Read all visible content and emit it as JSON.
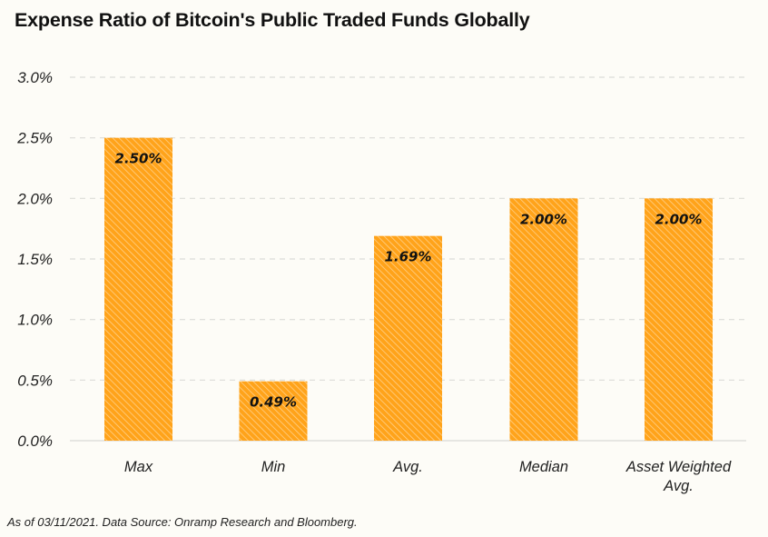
{
  "chart_data": {
    "type": "bar",
    "title": "Expense Ratio of Bitcoin's Public Traded Funds Globally",
    "xlabel": "",
    "ylabel": "",
    "categories": [
      "Max",
      "Min",
      "Avg.",
      "Median",
      "Asset Weighted Avg."
    ],
    "category_lines": [
      [
        "Max"
      ],
      [
        "Min"
      ],
      [
        "Avg."
      ],
      [
        "Median"
      ],
      [
        "Asset Weighted",
        "Avg."
      ]
    ],
    "values": [
      2.5,
      0.49,
      1.69,
      2.0,
      2.0
    ],
    "data_labels": [
      "2.50%",
      "0.49%",
      "1.69%",
      "2.00%",
      "2.00%"
    ],
    "ylim": [
      0,
      3.0
    ],
    "yticks": [
      0.0,
      0.5,
      1.0,
      1.5,
      2.0,
      2.5,
      3.0
    ],
    "ytick_labels": [
      "0.0%",
      "0.5%",
      "1.0%",
      "1.5%",
      "2.0%",
      "2.5%",
      "3.0%"
    ],
    "grid": true,
    "grid_style": "dashed",
    "legend": "none",
    "bar_color": "#ffa31a",
    "bar_pattern": "diagonal-hatch",
    "footnote": "As of 03/11/2021. Data Source: Onramp Research and Bloomberg."
  }
}
